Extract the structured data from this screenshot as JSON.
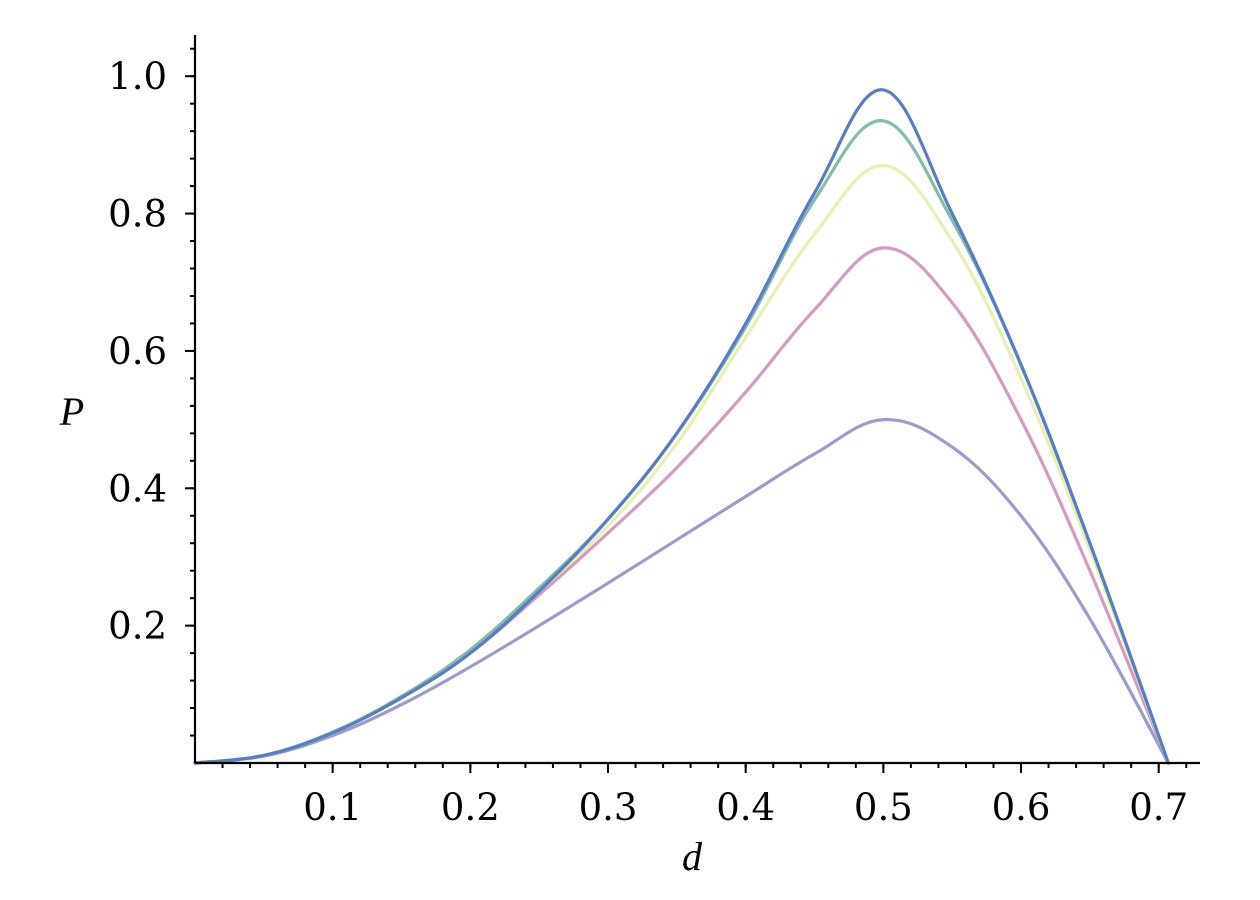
{
  "chart_data": {
    "type": "line",
    "xlabel": "d",
    "ylabel": "P",
    "xlim": [
      0,
      0.73
    ],
    "ylim": [
      0,
      1.06
    ],
    "x_ticks": [
      "0.1",
      "0.2",
      "0.3",
      "0.4",
      "0.5",
      "0.6",
      "0.7"
    ],
    "y_ticks": [
      "0.2",
      "0.4",
      "0.6",
      "0.8",
      "1.0"
    ],
    "x_tick_values": [
      0.1,
      0.2,
      0.3,
      0.4,
      0.5,
      0.6,
      0.7
    ],
    "y_tick_values": [
      0.2,
      0.4,
      0.6,
      0.8,
      1.0
    ],
    "x_minor_step": 0.02,
    "y_minor_step": 0.04,
    "grid": false,
    "legend": "none",
    "x": [
      0,
      0.05,
      0.1,
      0.15,
      0.2,
      0.25,
      0.3,
      0.35,
      0.4,
      0.45,
      0.5,
      0.55,
      0.6,
      0.65,
      0.707
    ],
    "series": [
      {
        "color": "#9c9ccc",
        "values": [
          0,
          0.01,
          0.04,
          0.085,
          0.14,
          0.2,
          0.262,
          0.325,
          0.388,
          0.45,
          0.5,
          0.46,
          0.36,
          0.21,
          0
        ]
      },
      {
        "color": "#d29cc0",
        "values": [
          0,
          0.011,
          0.045,
          0.095,
          0.16,
          0.245,
          0.335,
          0.43,
          0.54,
          0.66,
          0.75,
          0.67,
          0.5,
          0.28,
          0
        ]
      },
      {
        "color": "#e6f0b4",
        "values": [
          0,
          0.011,
          0.045,
          0.096,
          0.16,
          0.25,
          0.345,
          0.465,
          0.62,
          0.77,
          0.87,
          0.76,
          0.56,
          0.31,
          0
        ]
      },
      {
        "color": "#84bca8",
        "values": [
          0,
          0.011,
          0.045,
          0.097,
          0.165,
          0.255,
          0.355,
          0.48,
          0.635,
          0.82,
          0.935,
          0.79,
          0.58,
          0.32,
          0
        ]
      },
      {
        "color": "#5a7cc4",
        "values": [
          0,
          0.011,
          0.044,
          0.095,
          0.16,
          0.25,
          0.355,
          0.48,
          0.64,
          0.83,
          0.98,
          0.8,
          0.58,
          0.32,
          0
        ]
      }
    ]
  }
}
